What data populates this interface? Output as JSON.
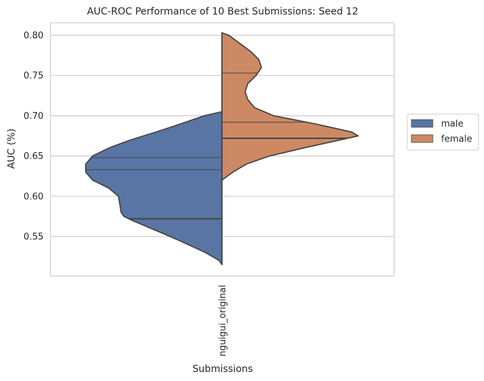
{
  "chart_data": {
    "type": "violin",
    "title": "AUC-ROC Performance of 10 Best Submissions: Seed 12",
    "xlabel": "Submissions",
    "ylabel": "AUC (%)",
    "categories": [
      "nguigui_original"
    ],
    "ylim": [
      0.5,
      0.81
    ],
    "yticks": [
      0.55,
      0.6,
      0.65,
      0.7,
      0.75,
      0.8
    ],
    "ytick_labels": [
      "0.55",
      "0.60",
      "0.65",
      "0.70",
      "0.75",
      "0.80"
    ],
    "grid": true,
    "legend_position": "right",
    "split": true,
    "series": [
      {
        "name": "male",
        "color": "#5875a4",
        "side": "left",
        "min": 0.515,
        "max": 0.705,
        "quartiles": [
          0.572,
          0.633,
          0.648
        ],
        "density": [
          [
            0.515,
            0.0
          ],
          [
            0.52,
            0.02
          ],
          [
            0.53,
            0.12
          ],
          [
            0.54,
            0.25
          ],
          [
            0.55,
            0.38
          ],
          [
            0.56,
            0.52
          ],
          [
            0.57,
            0.66
          ],
          [
            0.575,
            0.72
          ],
          [
            0.58,
            0.74
          ],
          [
            0.59,
            0.75
          ],
          [
            0.6,
            0.76
          ],
          [
            0.61,
            0.83
          ],
          [
            0.62,
            0.95
          ],
          [
            0.63,
            1.0
          ],
          [
            0.64,
            1.0
          ],
          [
            0.65,
            0.95
          ],
          [
            0.66,
            0.83
          ],
          [
            0.67,
            0.67
          ],
          [
            0.68,
            0.48
          ],
          [
            0.69,
            0.3
          ],
          [
            0.7,
            0.13
          ],
          [
            0.705,
            0.0
          ]
        ]
      },
      {
        "name": "female",
        "color": "#cc8963",
        "side": "right",
        "min": 0.62,
        "max": 0.803,
        "quartiles": [
          0.672,
          0.692,
          0.753
        ],
        "density": [
          [
            0.62,
            0.0
          ],
          [
            0.625,
            0.04
          ],
          [
            0.63,
            0.08
          ],
          [
            0.64,
            0.18
          ],
          [
            0.65,
            0.35
          ],
          [
            0.66,
            0.6
          ],
          [
            0.67,
            0.87
          ],
          [
            0.675,
            1.0
          ],
          [
            0.68,
            0.95
          ],
          [
            0.69,
            0.68
          ],
          [
            0.7,
            0.38
          ],
          [
            0.71,
            0.24
          ],
          [
            0.72,
            0.19
          ],
          [
            0.73,
            0.17
          ],
          [
            0.74,
            0.19
          ],
          [
            0.75,
            0.25
          ],
          [
            0.76,
            0.29
          ],
          [
            0.77,
            0.27
          ],
          [
            0.78,
            0.21
          ],
          [
            0.79,
            0.13
          ],
          [
            0.8,
            0.05
          ],
          [
            0.803,
            0.0
          ]
        ]
      }
    ]
  }
}
